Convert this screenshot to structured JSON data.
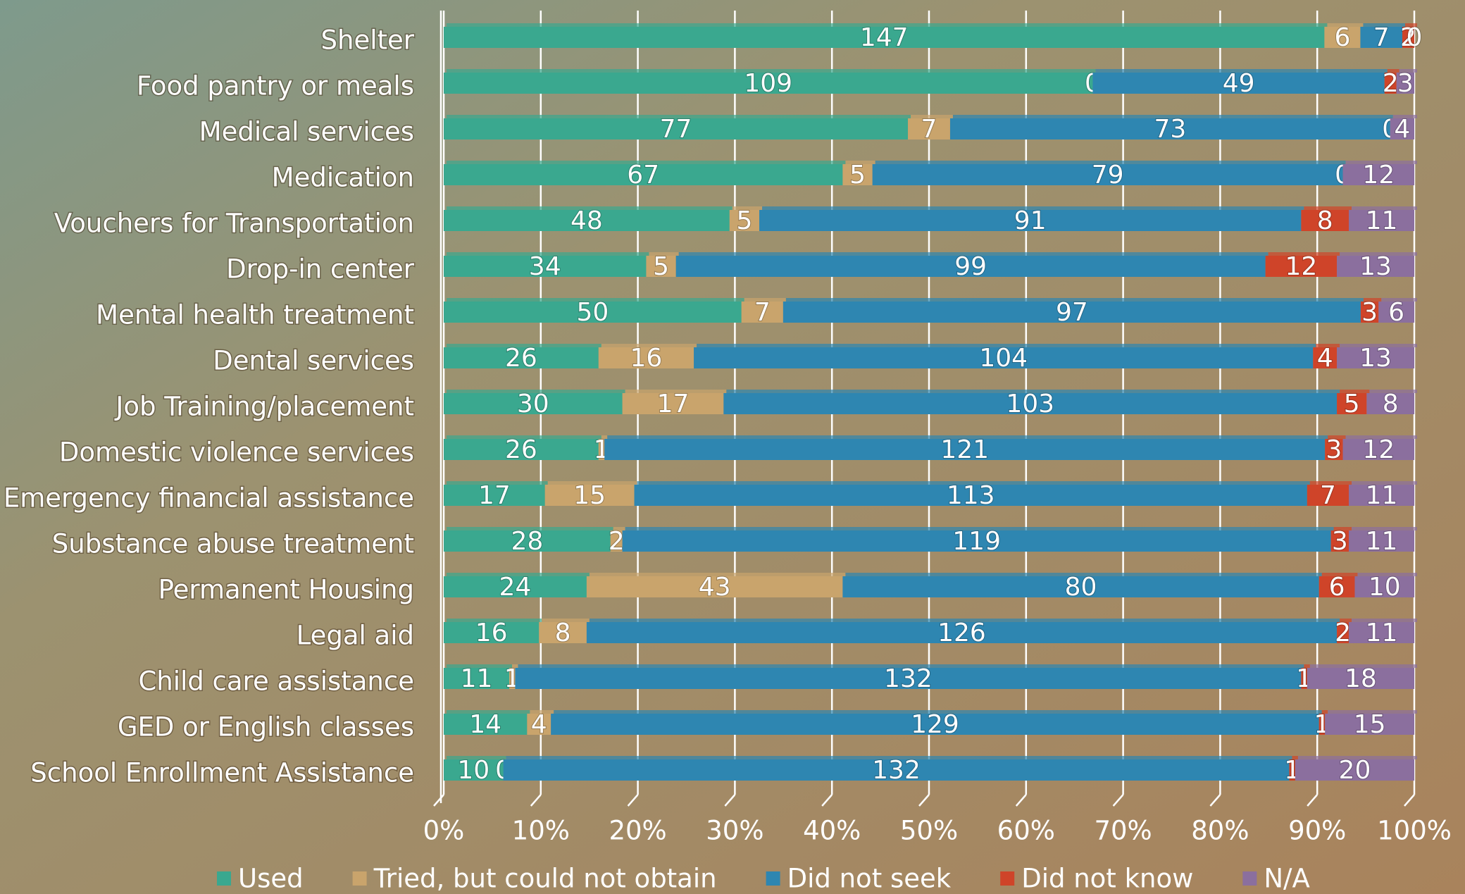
{
  "chart_data": {
    "type": "bar",
    "orientation": "horizontal",
    "stacked": "percent",
    "categories": [
      "Shelter",
      "Food pantry or meals",
      "Medical services",
      "Medication",
      "Vouchers for Transportation",
      "Drop-in center",
      "Mental health treatment",
      "Dental services",
      "Job Training/placement",
      "Domestic violence services",
      "Emergency financial assistance",
      "Substance abuse treatment",
      "Permanent Housing",
      "Legal aid",
      "Child care assistance",
      "GED or English classes",
      "School Enrollment Assistance"
    ],
    "series": [
      {
        "name": "Used",
        "color": "#3aa88f",
        "values": [
          147,
          109,
          77,
          67,
          48,
          34,
          50,
          26,
          30,
          26,
          17,
          28,
          24,
          16,
          11,
          14,
          10
        ]
      },
      {
        "name": "Tried, but could not obtain",
        "color": "#c9a46c",
        "values": [
          6,
          0,
          7,
          5,
          5,
          5,
          7,
          16,
          17,
          1,
          15,
          2,
          43,
          8,
          1,
          4,
          0
        ]
      },
      {
        "name": "Did not seek",
        "color": "#2e86b1",
        "values": [
          7,
          49,
          73,
          79,
          91,
          99,
          97,
          104,
          103,
          121,
          113,
          119,
          80,
          126,
          132,
          129,
          132
        ]
      },
      {
        "name": "Did not know",
        "color": "#cf4429",
        "values": [
          2,
          2,
          0,
          0,
          8,
          12,
          3,
          4,
          5,
          3,
          7,
          3,
          6,
          2,
          1,
          1,
          1
        ]
      },
      {
        "name": "N/A",
        "color": "#8b6f9e",
        "values": [
          0,
          3,
          4,
          12,
          11,
          13,
          6,
          13,
          8,
          12,
          11,
          11,
          10,
          11,
          18,
          15,
          20
        ]
      }
    ],
    "xlim": [
      0,
      100
    ],
    "xticks": [
      {
        "value": 0,
        "label": "0%"
      },
      {
        "value": 10,
        "label": "10%"
      },
      {
        "value": 20,
        "label": "20%"
      },
      {
        "value": 30,
        "label": "30%"
      },
      {
        "value": 40,
        "label": "40%"
      },
      {
        "value": 50,
        "label": "50%"
      },
      {
        "value": 60,
        "label": "60%"
      },
      {
        "value": 70,
        "label": "70%"
      },
      {
        "value": 80,
        "label": "80%"
      },
      {
        "value": 90,
        "label": "90%"
      },
      {
        "value": 100,
        "label": "100%"
      }
    ],
    "grid": true,
    "legend": "bottom"
  }
}
